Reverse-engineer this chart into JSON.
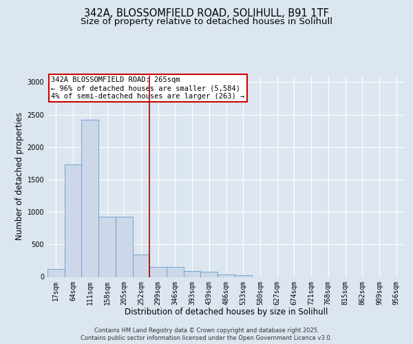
{
  "title_line1": "342A, BLOSSOMFIELD ROAD, SOLIHULL, B91 1TF",
  "title_line2": "Size of property relative to detached houses in Solihull",
  "xlabel": "Distribution of detached houses by size in Solihull",
  "ylabel": "Number of detached properties",
  "bin_labels": [
    "17sqm",
    "64sqm",
    "111sqm",
    "158sqm",
    "205sqm",
    "252sqm",
    "299sqm",
    "346sqm",
    "393sqm",
    "439sqm",
    "486sqm",
    "533sqm",
    "580sqm",
    "627sqm",
    "674sqm",
    "721sqm",
    "768sqm",
    "815sqm",
    "862sqm",
    "909sqm",
    "956sqm"
  ],
  "bar_heights": [
    120,
    1730,
    2420,
    930,
    930,
    340,
    155,
    150,
    90,
    80,
    40,
    30,
    0,
    0,
    0,
    0,
    0,
    0,
    0,
    0,
    0
  ],
  "bar_color": "#ccd8e8",
  "bar_edge_color": "#6699cc",
  "red_line_x": 5.5,
  "red_line_color": "#aa0000",
  "annotation_text": "342A BLOSSOMFIELD ROAD: 265sqm\n← 96% of detached houses are smaller (5,584)\n4% of semi-detached houses are larger (263) →",
  "annotation_box_facecolor": "#ffffff",
  "annotation_box_edgecolor": "#cc0000",
  "ylim": [
    0,
    3100
  ],
  "yticks": [
    0,
    500,
    1000,
    1500,
    2000,
    2500,
    3000
  ],
  "background_color": "#dce6f0",
  "plot_bg_color": "#dce6f0",
  "footer_line1": "Contains HM Land Registry data © Crown copyright and database right 2025.",
  "footer_line2": "Contains public sector information licensed under the Open Government Licence v3.0.",
  "title_fontsize": 10.5,
  "subtitle_fontsize": 9.5,
  "axis_label_fontsize": 8.5,
  "tick_fontsize": 7,
  "annotation_fontsize": 7.5,
  "footer_fontsize": 6
}
